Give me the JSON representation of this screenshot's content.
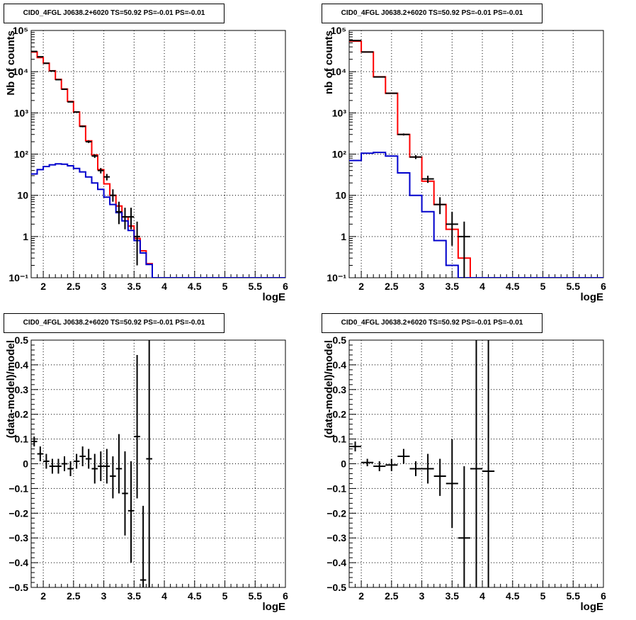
{
  "chart_data": [
    {
      "type": "line",
      "title": "CID0_4FGL J0638.2+6020 TS=50.92 PS=-0.01 PS=-0.01",
      "xlabel": "logE",
      "ylabel": "Nb of counts",
      "xlim": [
        1.8,
        6.0
      ],
      "ylim": [
        0.1,
        100000
      ],
      "yscale": "log",
      "grid": true,
      "x_ticks": [
        "2",
        "2.5",
        "3",
        "3.5",
        "4",
        "4.5",
        "5",
        "5.5",
        "6"
      ],
      "y_ticks": [
        "10⁻¹",
        "1",
        "10",
        "10²",
        "10³",
        "10⁴",
        "10⁵"
      ],
      "bin_width": 0.1,
      "bin_start": 1.8,
      "series": [
        {
          "color": "#ff0000",
          "style": "step",
          "values": [
            30000,
            22000,
            16000,
            10500,
            6500,
            3800,
            1900,
            1050,
            480,
            210,
            95,
            42,
            19,
            10,
            5.5,
            3,
            1.8,
            0.9,
            0.45,
            0.22,
            0.1
          ]
        },
        {
          "color": "#0000cc",
          "style": "step",
          "values": [
            33,
            42,
            50,
            55,
            58,
            57,
            52,
            45,
            37,
            28,
            20,
            14,
            9,
            6,
            3.8,
            2.4,
            1.4,
            0.8,
            0.4,
            0.21,
            0.1
          ]
        },
        {
          "color": "#000000",
          "style": "points",
          "points": [
            {
              "x": 1.85,
              "y": 31000,
              "yerr": [
                175,
                175
              ]
            },
            {
              "x": 1.95,
              "y": 23000,
              "yerr": [
                150,
                150
              ]
            },
            {
              "x": 2.05,
              "y": 16000,
              "yerr": [
                125,
                125
              ]
            },
            {
              "x": 2.15,
              "y": 10400,
              "yerr": [
                100,
                100
              ]
            },
            {
              "x": 2.25,
              "y": 6400,
              "yerr": [
                80,
                80
              ]
            },
            {
              "x": 2.35,
              "y": 3750,
              "yerr": [
                60,
                60
              ]
            },
            {
              "x": 2.45,
              "y": 1850,
              "yerr": [
                43,
                43
              ]
            },
            {
              "x": 2.55,
              "y": 1050,
              "yerr": [
                32,
                32
              ]
            },
            {
              "x": 2.65,
              "y": 470,
              "yerr": [
                22,
                22
              ]
            },
            {
              "x": 2.75,
              "y": 200,
              "yerr": [
                14,
                14
              ]
            },
            {
              "x": 2.85,
              "y": 90,
              "yerr": [
                9,
                9
              ]
            },
            {
              "x": 2.95,
              "y": 40,
              "yerr": [
                6,
                6
              ]
            },
            {
              "x": 3.05,
              "y": 28,
              "yerr": [
                5,
                5
              ]
            },
            {
              "x": 3.15,
              "y": 10,
              "yerr": [
                3,
                4
              ]
            },
            {
              "x": 3.25,
              "y": 4,
              "yerr": [
                2,
                3
              ]
            },
            {
              "x": 3.35,
              "y": 3,
              "yerr": [
                1.5,
                2
              ]
            },
            {
              "x": 3.45,
              "y": 3,
              "yerr": [
                1.5,
                2
              ]
            },
            {
              "x": 3.55,
              "y": 1,
              "yerr": [
                0.8,
                1.3
              ]
            }
          ]
        }
      ]
    },
    {
      "type": "line",
      "title": "CID0_4FGL J0638.2+6020 TS=50.92 PS=-0.01 PS=-0.01",
      "xlabel": "logE",
      "ylabel": "nb of counts",
      "xlim": [
        1.8,
        6.0
      ],
      "ylim": [
        0.1,
        100000
      ],
      "yscale": "log",
      "grid": true,
      "x_ticks": [
        "2",
        "2.5",
        "3",
        "3.5",
        "4",
        "4.5",
        "5",
        "5.5",
        "6"
      ],
      "y_ticks": [
        "10⁻¹",
        "1",
        "10",
        "10²",
        "10³",
        "10⁴",
        "10⁵"
      ],
      "bin_width": 0.2,
      "bin_start": 1.8,
      "series": [
        {
          "color": "#ff0000",
          "style": "step",
          "values": [
            55000,
            30000,
            7500,
            3000,
            300,
            85,
            22,
            6,
            1.5,
            0.3,
            0.1
          ]
        },
        {
          "color": "#0000cc",
          "style": "step",
          "values": [
            70,
            105,
            110,
            90,
            35,
            10,
            4,
            0.8,
            0.2,
            0.1,
            0.1
          ]
        },
        {
          "color": "#000000",
          "style": "points",
          "points": [
            {
              "x": 1.9,
              "y": 57000,
              "yerr": [
                240,
                240
              ]
            },
            {
              "x": 2.1,
              "y": 30000,
              "yerr": [
                173,
                173
              ]
            },
            {
              "x": 2.3,
              "y": 7450,
              "yerr": [
                86,
                86
              ]
            },
            {
              "x": 2.5,
              "y": 3000,
              "yerr": [
                55,
                55
              ]
            },
            {
              "x": 2.7,
              "y": 300,
              "yerr": [
                17,
                17
              ]
            },
            {
              "x": 2.9,
              "y": 85,
              "yerr": [
                9,
                9
              ]
            },
            {
              "x": 3.1,
              "y": 25,
              "yerr": [
                5,
                5
              ]
            },
            {
              "x": 3.3,
              "y": 6,
              "yerr": [
                2.5,
                3
              ]
            },
            {
              "x": 3.5,
              "y": 2,
              "yerr": [
                1.4,
                2
              ]
            },
            {
              "x": 3.7,
              "y": 1,
              "yerr": [
                0.9,
                1.3
              ]
            }
          ]
        }
      ]
    },
    {
      "type": "scatter",
      "title": "CID0_4FGL J0638.2+6020 TS=50.92 PS=-0.01 PS=-0.01",
      "xlabel": "logE",
      "ylabel": "(data-model)/model",
      "xlim": [
        1.8,
        6.0
      ],
      "ylim": [
        -0.5,
        0.5
      ],
      "grid": true,
      "x_ticks": [
        "2",
        "2.5",
        "3",
        "3.5",
        "4",
        "4.5",
        "5",
        "5.5",
        "6"
      ],
      "y_ticks": [
        "−0.5",
        "−0.4",
        "−0.3",
        "−0.2",
        "−0.1",
        "0",
        "0.1",
        "0.2",
        "0.3",
        "0.4",
        "0.5"
      ],
      "bin_width": 0.1,
      "series": [
        {
          "color": "#000000",
          "points": [
            {
              "x": 1.85,
              "y": 0.09,
              "yerr": [
                0.02,
                0.02
              ]
            },
            {
              "x": 1.95,
              "y": 0.04,
              "yerr": [
                0.03,
                0.03
              ]
            },
            {
              "x": 2.05,
              "y": 0.01,
              "yerr": [
                0.03,
                0.03
              ]
            },
            {
              "x": 2.15,
              "y": -0.01,
              "yerr": [
                0.03,
                0.03
              ]
            },
            {
              "x": 2.25,
              "y": -0.01,
              "yerr": [
                0.03,
                0.03
              ]
            },
            {
              "x": 2.35,
              "y": 0.0,
              "yerr": [
                0.03,
                0.03
              ]
            },
            {
              "x": 2.45,
              "y": -0.02,
              "yerr": [
                0.03,
                0.03
              ]
            },
            {
              "x": 2.55,
              "y": 0.01,
              "yerr": [
                0.03,
                0.03
              ]
            },
            {
              "x": 2.65,
              "y": 0.03,
              "yerr": [
                0.04,
                0.04
              ]
            },
            {
              "x": 2.75,
              "y": 0.02,
              "yerr": [
                0.04,
                0.04
              ]
            },
            {
              "x": 2.85,
              "y": -0.02,
              "yerr": [
                0.06,
                0.06
              ]
            },
            {
              "x": 2.95,
              "y": -0.01,
              "yerr": [
                0.06,
                0.06
              ]
            },
            {
              "x": 3.05,
              "y": -0.01,
              "yerr": [
                0.07,
                0.07
              ]
            },
            {
              "x": 3.15,
              "y": -0.05,
              "yerr": [
                0.09,
                0.08
              ]
            },
            {
              "x": 3.25,
              "y": -0.02,
              "yerr": [
                0.1,
                0.14
              ]
            },
            {
              "x": 3.35,
              "y": -0.12,
              "yerr": [
                0.17,
                0.17
              ]
            },
            {
              "x": 3.45,
              "y": -0.19,
              "yerr": [
                0.21,
                0.2
              ]
            },
            {
              "x": 3.55,
              "y": 0.11,
              "yerr": [
                0.25,
                0.33
              ]
            },
            {
              "x": 3.65,
              "y": -0.47,
              "yerr": [
                0.05,
                0.3
              ]
            },
            {
              "x": 3.75,
              "y": 0.02,
              "yerr": [
                0.6,
                0.6
              ]
            }
          ]
        }
      ]
    },
    {
      "type": "scatter",
      "title": "CID0_4FGL J0638.2+6020 TS=50.92 PS=-0.01 PS=-0.01",
      "xlabel": "logE",
      "ylabel": "(data-model)/model",
      "xlim": [
        1.8,
        6.0
      ],
      "ylim": [
        -0.5,
        0.5
      ],
      "grid": true,
      "x_ticks": [
        "2",
        "2.5",
        "3",
        "3.5",
        "4",
        "4.5",
        "5",
        "5.5",
        "6"
      ],
      "y_ticks": [
        "−0.5",
        "−0.4",
        "−0.3",
        "−0.2",
        "−0.1",
        "0",
        "0.1",
        "0.2",
        "0.3",
        "0.4",
        "0.5"
      ],
      "bin_width": 0.2,
      "series": [
        {
          "color": "#000000",
          "points": [
            {
              "x": 1.9,
              "y": 0.07,
              "yerr": [
                0.02,
                0.02
              ]
            },
            {
              "x": 2.1,
              "y": 0.005,
              "yerr": [
                0.015,
                0.015
              ]
            },
            {
              "x": 2.3,
              "y": -0.01,
              "yerr": [
                0.02,
                0.02
              ]
            },
            {
              "x": 2.5,
              "y": -0.005,
              "yerr": [
                0.025,
                0.025
              ]
            },
            {
              "x": 2.7,
              "y": 0.03,
              "yerr": [
                0.03,
                0.03
              ]
            },
            {
              "x": 2.9,
              "y": -0.02,
              "yerr": [
                0.03,
                0.03
              ]
            },
            {
              "x": 3.1,
              "y": -0.02,
              "yerr": [
                0.06,
                0.06
              ]
            },
            {
              "x": 3.3,
              "y": -0.05,
              "yerr": [
                0.08,
                0.07
              ]
            },
            {
              "x": 3.5,
              "y": -0.08,
              "yerr": [
                0.18,
                0.18
              ]
            },
            {
              "x": 3.7,
              "y": -0.3,
              "yerr": [
                0.2,
                0.29
              ]
            },
            {
              "x": 3.9,
              "y": -0.02,
              "yerr": [
                0.5,
                0.6
              ]
            },
            {
              "x": 4.1,
              "y": -0.03,
              "yerr": [
                0.5,
                0.6
              ]
            }
          ]
        }
      ]
    }
  ]
}
